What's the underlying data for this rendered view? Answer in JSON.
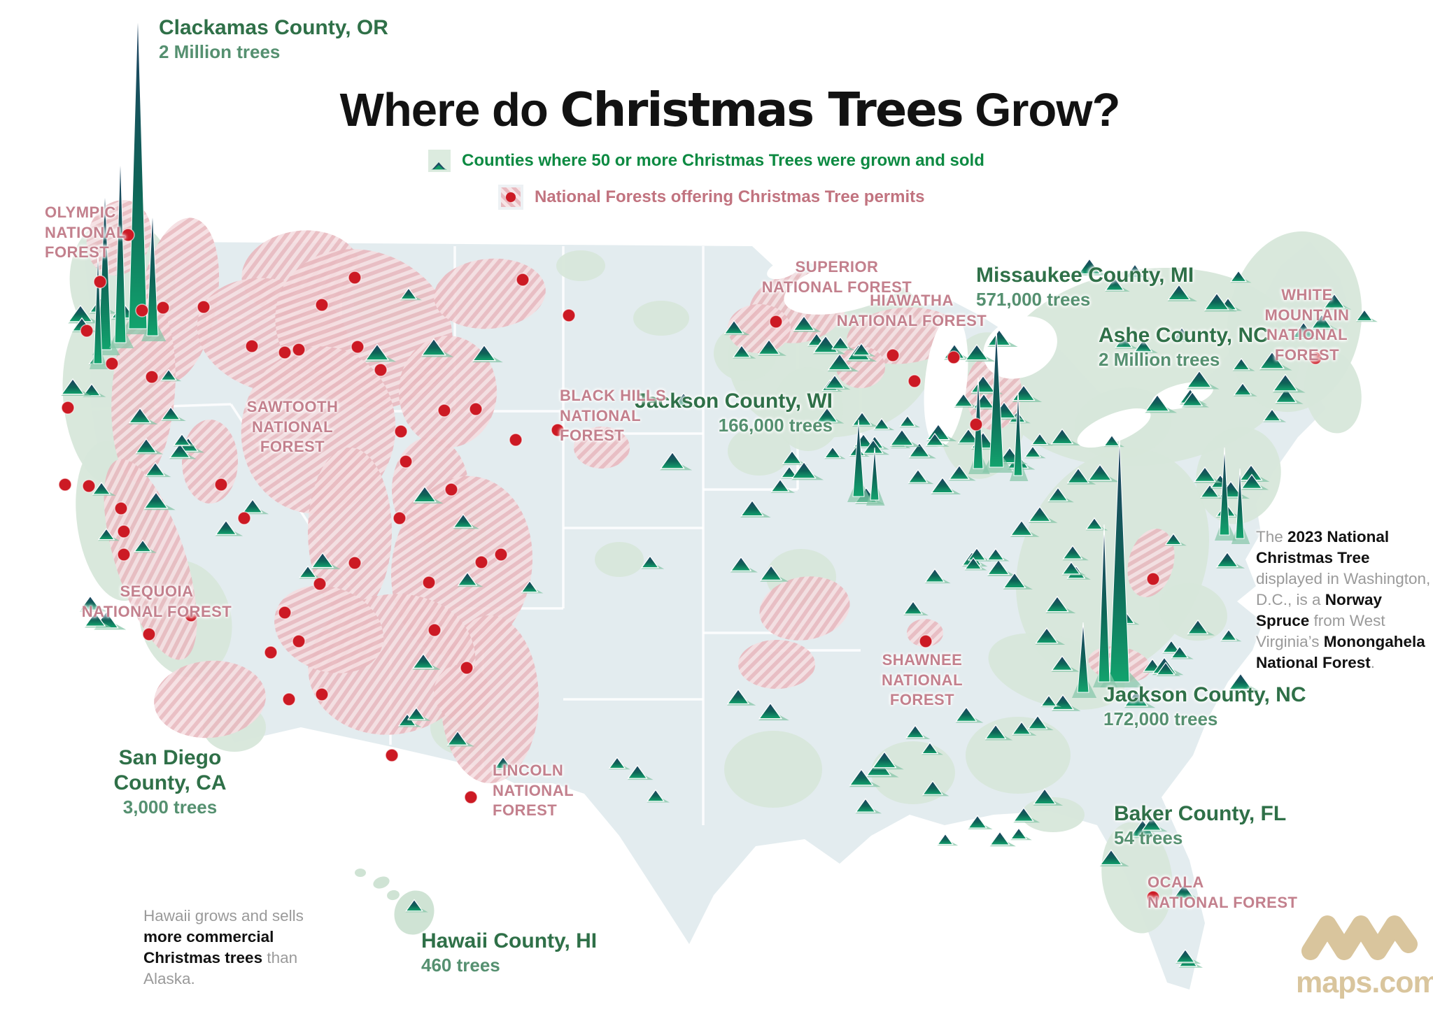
{
  "title": {
    "pre": "Where do ",
    "bold": "Christmas Trees",
    "post": " Grow?"
  },
  "legend": {
    "counties_label": "Counties where 50 or more Christmas Trees were grown and sold",
    "forests_label": "National Forests offering Christmas Tree permits"
  },
  "county_callouts": [
    {
      "id": "clackamas",
      "name": "Clackamas County, OR",
      "value": "2 Million trees"
    },
    {
      "id": "missaukee",
      "name": "Missaukee County, MI",
      "value": "571,000 trees"
    },
    {
      "id": "ashe",
      "name": "Ashe County, NC",
      "value": "2 Million trees"
    },
    {
      "id": "jackson-wi",
      "name": "Jackson County, WI",
      "value": "166,000 trees"
    },
    {
      "id": "jackson-nc",
      "name": "Jackson County, NC",
      "value": "172,000 trees"
    },
    {
      "id": "san-diego",
      "name": "San Diego\nCounty, CA",
      "value": "3,000 trees"
    },
    {
      "id": "baker",
      "name": "Baker County, FL",
      "value": "54 trees"
    },
    {
      "id": "hawaii",
      "name": "Hawaii County, HI",
      "value": "460 trees"
    }
  ],
  "forest_callouts": [
    {
      "id": "olympic",
      "text": "OLYMPIC\nNATIONAL\nFOREST"
    },
    {
      "id": "superior",
      "text": "SUPERIOR\nNATIONAL FOREST"
    },
    {
      "id": "hiawatha",
      "text": "HIAWATHA\nNATIONAL FOREST"
    },
    {
      "id": "white-mountain",
      "text": "WHITE MOUNTAIN\nNATIONAL FOREST"
    },
    {
      "id": "sawtooth",
      "text": "SAWTOOTH\nNATIONAL\nFOREST"
    },
    {
      "id": "black-hills",
      "text": "BLACK HILLS\nNATIONAL\nFOREST"
    },
    {
      "id": "sequoia",
      "text": "SEQUOIA\nNATIONAL FOREST"
    },
    {
      "id": "shawnee",
      "text": "SHAWNEE\nNATIONAL\nFOREST"
    },
    {
      "id": "lincoln",
      "text": "LINCOLN\nNATIONAL\nFOREST"
    },
    {
      "id": "ocala",
      "text": "OCALA\nNATIONAL FOREST"
    }
  ],
  "notes": {
    "hawaii": [
      {
        "t": "Hawaii grows and sells ",
        "b": false
      },
      {
        "t": "more commercial Christmas trees",
        "b": true
      },
      {
        "t": " than Alaska.",
        "b": false
      }
    ],
    "dc": [
      {
        "t": "The ",
        "b": false
      },
      {
        "t": "2023 National Christmas Tree",
        "b": true
      },
      {
        "t": " displayed in Washington, D.C., is a ",
        "b": false
      },
      {
        "t": "Norway Spruce",
        "b": true
      },
      {
        "t": " from West Virginia’s ",
        "b": false
      },
      {
        "t": "Monongahela National Forest",
        "b": true
      },
      {
        "t": ".",
        "b": false
      }
    ]
  },
  "logo": {
    "text": "maps.com"
  },
  "colors": {
    "county_green": "#2f7048",
    "value_green": "#559070",
    "legend_green": "#0d8a42",
    "forest_rose": "#c3808d",
    "legend_rose": "#c1737f",
    "dot_red": "#cc1a24",
    "land": "#e3ecef",
    "county_patch": "#d7e7da",
    "hatch_pink": "#e8b9bf",
    "tree_navy": "#203f63",
    "tree_green": "#12a36d",
    "logo_tan": "#d9c59d"
  }
}
